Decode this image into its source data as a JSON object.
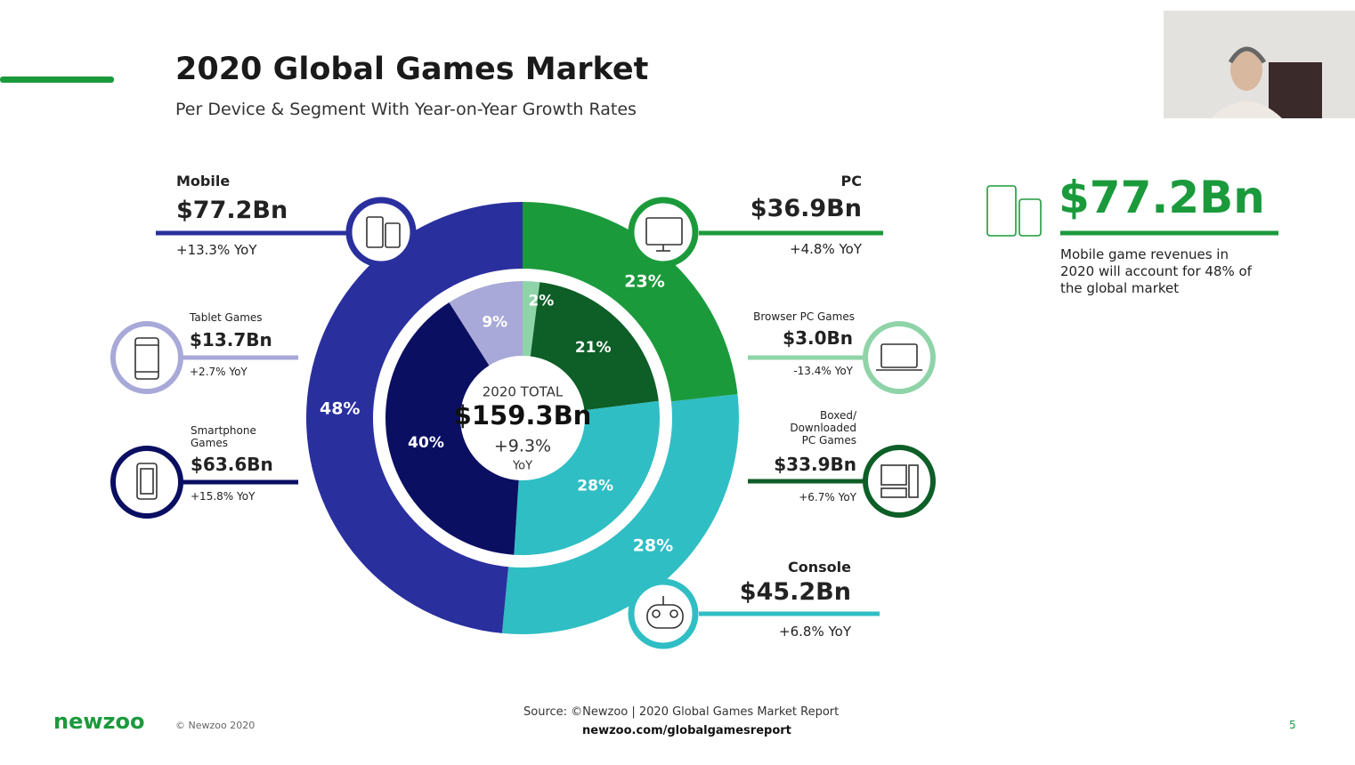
{
  "header": {
    "title": "2020 Global Games Market",
    "subtitle": "Per Device & Segment With Year-on-Year Growth Rates"
  },
  "chart_data": {
    "type": "donut",
    "center": {
      "label": "2020 TOTAL",
      "value": "$159.3Bn",
      "growth": "+9.3%",
      "growth_unit": "YoY"
    },
    "outer": {
      "categories": [
        "PC",
        "Console",
        "Mobile"
      ],
      "values": [
        23,
        28,
        48
      ],
      "value_labels": [
        "23%",
        "28%",
        "48%"
      ],
      "colors": [
        "#1b9a3c",
        "#2fbec4",
        "#2a2f9e"
      ],
      "revenue": [
        "$36.9Bn",
        "$45.2Bn",
        "$77.2Bn"
      ],
      "growth": [
        "+4.8% YoY",
        "+6.8% YoY",
        "+13.3% YoY"
      ]
    },
    "inner": {
      "categories": [
        "Browser PC Games",
        "Boxed/ Downloaded PC Games",
        null,
        "Smartphone Games",
        "Tablet Games"
      ],
      "values": [
        2,
        21,
        28,
        40,
        9
      ],
      "value_labels": [
        "2%",
        "21%",
        "28%",
        "40%",
        "9%"
      ],
      "colors": [
        "#8fd4a8",
        "#0d5e27",
        "#2fbec4",
        "#0b0f62",
        "#a8a9d8"
      ],
      "revenue": [
        "$3.0Bn",
        "$33.9Bn",
        null,
        "$63.6Bn",
        "$13.7Bn"
      ],
      "growth": [
        "-13.4% YoY",
        "+6.7% YoY",
        null,
        "+15.8% YoY",
        "+2.7% YoY"
      ]
    }
  },
  "highlight": {
    "value": "$77.2Bn",
    "text": "Mobile game revenues in 2020 will account for 48% of the global market"
  },
  "footer": {
    "brand": "newzoo",
    "copyright": "© Newzoo 2020",
    "source": "Source: ©Newzoo | 2020 Global Games Market Report",
    "url": "newzoo.com/globalgamesreport",
    "page": "5"
  }
}
